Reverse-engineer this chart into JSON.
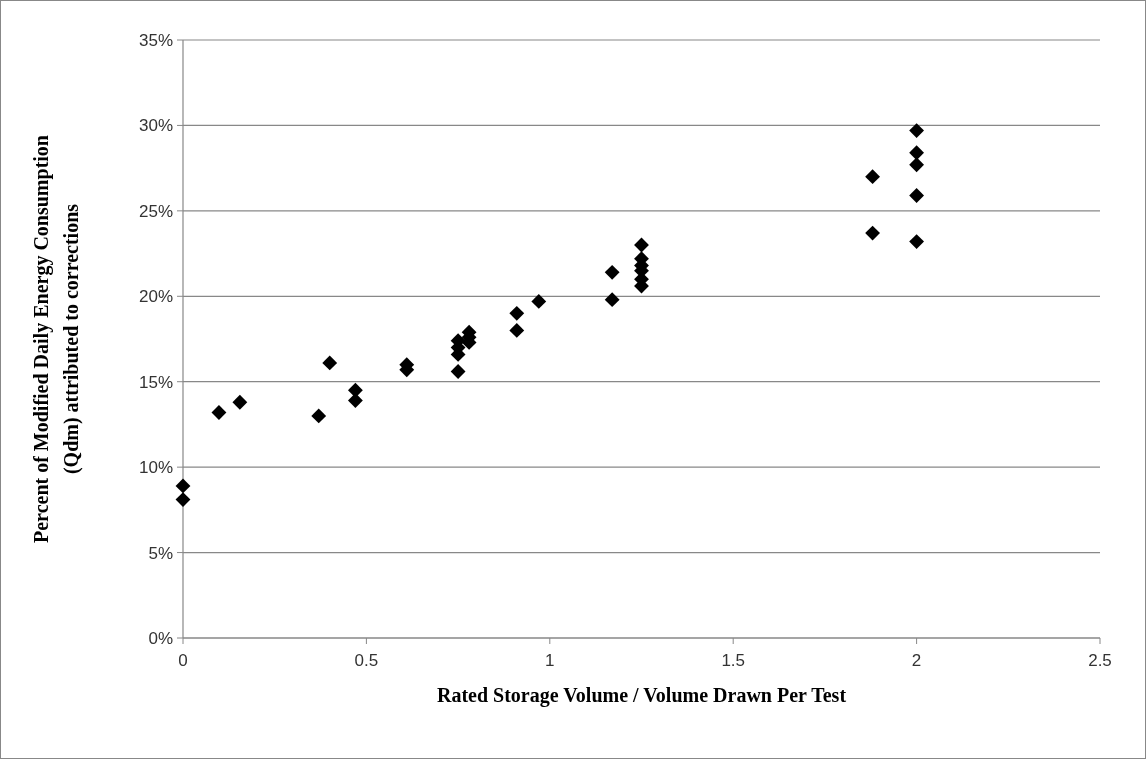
{
  "chart_data": {
    "type": "scatter",
    "xlabel": "Rated Storage Volume / Volume Drawn Per Test",
    "ylabel": "Percent of Modified Daily Energy Consumption (Qdm) attributed to corrections",
    "x": [
      0,
      0,
      0.098,
      0.155,
      0.37,
      0.4,
      0.47,
      0.47,
      0.61,
      0.61,
      0.75,
      0.75,
      0.75,
      0.75,
      0.78,
      0.78,
      0.78,
      0.91,
      0.91,
      0.97,
      1.17,
      1.17,
      1.25,
      1.25,
      1.25,
      1.25,
      1.25,
      1.25,
      1.88,
      1.88,
      2,
      2,
      2,
      2,
      2
    ],
    "series": [
      {
        "color": "#000000",
        "values": [
          8.1,
          8.9,
          13.2,
          13.8,
          13.0,
          16.1,
          13.9,
          14.5,
          15.7,
          16.0,
          15.6,
          16.6,
          17.0,
          17.4,
          17.3,
          17.6,
          17.9,
          18.0,
          19.0,
          19.7,
          19.8,
          21.4,
          20.6,
          21.0,
          21.5,
          21.8,
          22.2,
          23.0,
          23.7,
          27.0,
          23.2,
          25.9,
          27.7,
          28.4,
          29.7
        ]
      }
    ],
    "xlim": [
      0,
      2.5
    ],
    "xticks": [
      0,
      0.5,
      1,
      1.5,
      2,
      2.5
    ],
    "ylim": [
      0,
      35
    ],
    "yticks": [
      {
        "value": 0,
        "label": "0%"
      },
      {
        "value": 5,
        "label": "5%"
      },
      {
        "value": 10,
        "label": "10%"
      },
      {
        "value": 15,
        "label": "15%"
      },
      {
        "value": 20,
        "label": "20%"
      },
      {
        "value": 25,
        "label": "25%"
      },
      {
        "value": 30,
        "label": "30%"
      },
      {
        "value": 35,
        "label": "35%"
      }
    ],
    "grid": "y",
    "marker": "diamond"
  }
}
